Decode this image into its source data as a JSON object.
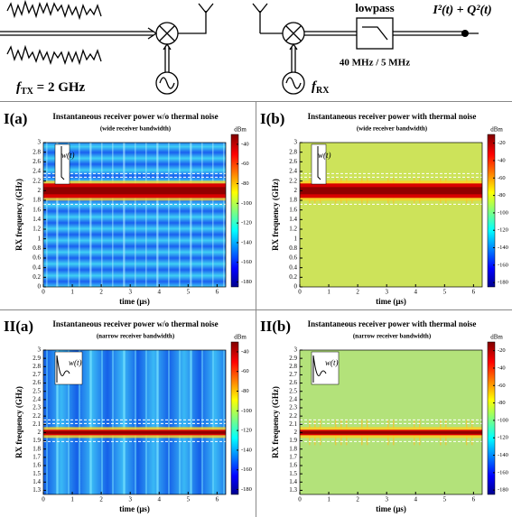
{
  "diagram": {
    "lowpass": "lowpass",
    "output": "I²(t) + Q²(t)",
    "tx_label": [
      "f",
      "TX",
      " = 2 GHz"
    ],
    "rx_label": [
      "f",
      "RX"
    ],
    "bandwidth": "40 MHz / 5 MHz"
  },
  "panels": [
    {
      "label": "I(a)",
      "title": "Instantaneous receiver power w/o thermal noise",
      "subtitle": "(wide receiver bandwidth)",
      "xlabel": "time (μs)",
      "ylabel": "RX frequency (GHz)",
      "inset": "w(t)",
      "xlim": [
        0,
        6.3
      ],
      "xticks": [
        0,
        1,
        2,
        3,
        4,
        5,
        6
      ],
      "ylim": [
        0,
        3
      ],
      "yticks": [
        0,
        0.2,
        0.4,
        0.6,
        0.8,
        1,
        1.2,
        1.4,
        1.6,
        1.8,
        2,
        2.2,
        2.4,
        2.6,
        2.8,
        3
      ],
      "cunit": "dBm",
      "clim": [
        -185,
        -30
      ],
      "cticks": [
        -40,
        -60,
        -80,
        -100,
        -120,
        -140,
        -160,
        -180
      ]
    },
    {
      "label": "I(b)",
      "title": "Instantaneous receiver power with thermal noise",
      "subtitle": "(wide receiver bandwidth)",
      "xlabel": "time (μs)",
      "ylabel": "RX frequency (GHz)",
      "inset": "w(t)",
      "xlim": [
        0,
        6.3
      ],
      "xticks": [
        0,
        1,
        2,
        3,
        4,
        5,
        6
      ],
      "ylim": [
        0,
        3
      ],
      "yticks": [
        0,
        0.2,
        0.4,
        0.6,
        0.8,
        1,
        1.2,
        1.4,
        1.6,
        1.8,
        2,
        2.2,
        2.4,
        2.6,
        2.8,
        3
      ],
      "cunit": "dBm",
      "clim": [
        -185,
        -10
      ],
      "cticks": [
        -20,
        -40,
        -60,
        -80,
        -100,
        -120,
        -140,
        -160,
        -180
      ]
    },
    {
      "label": "II(a)",
      "title": "Instantaneous receiver power w/o thermal noise",
      "subtitle": "(narrow receiver bandwidth)",
      "xlabel": "time (μs)",
      "ylabel": "RX frequency (GHz)",
      "inset": "w(t)",
      "xlim": [
        0,
        6.3
      ],
      "xticks": [
        0,
        1,
        2,
        3,
        4,
        5,
        6
      ],
      "ylim": [
        1.25,
        3
      ],
      "yticks": [
        1.3,
        1.4,
        1.5,
        1.6,
        1.7,
        1.8,
        1.9,
        2,
        2.1,
        2.2,
        2.3,
        2.4,
        2.5,
        2.6,
        2.7,
        2.8,
        2.9,
        3
      ],
      "cunit": "dBm",
      "clim": [
        -185,
        -30
      ],
      "cticks": [
        -40,
        -60,
        -80,
        -100,
        -120,
        -140,
        -160,
        -180
      ]
    },
    {
      "label": "II(b)",
      "title": "Instantaneous receiver power with thermal noise",
      "subtitle": "(narrow receiver bandwidth)",
      "xlabel": "time (μs)",
      "ylabel": "RX frequency (GHz)",
      "inset": "w(t)",
      "xlim": [
        0,
        6.3
      ],
      "xticks": [
        0,
        1,
        2,
        3,
        4,
        5,
        6
      ],
      "ylim": [
        1.25,
        3
      ],
      "yticks": [
        1.3,
        1.4,
        1.5,
        1.6,
        1.7,
        1.8,
        1.9,
        2,
        2.1,
        2.2,
        2.3,
        2.4,
        2.5,
        2.6,
        2.7,
        2.8,
        2.9,
        3
      ],
      "cunit": "dBm",
      "clim": [
        -185,
        -10
      ],
      "cticks": [
        -20,
        -40,
        -60,
        -80,
        -100,
        -120,
        -140,
        -160,
        -180
      ]
    }
  ]
}
